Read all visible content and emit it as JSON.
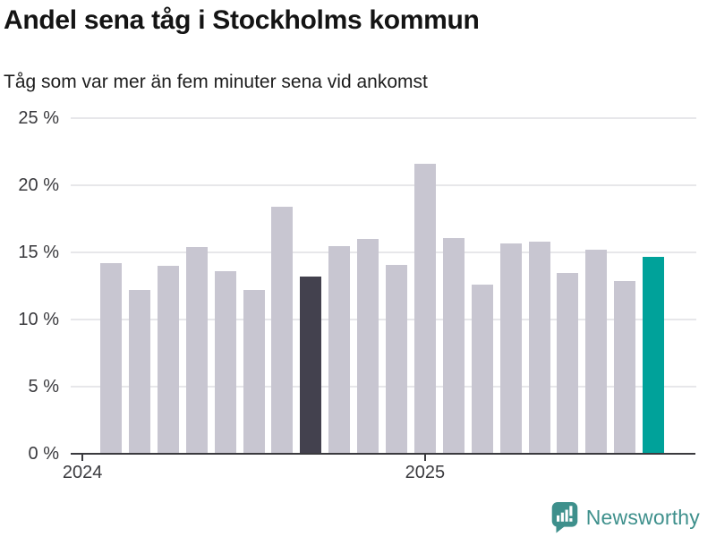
{
  "header": {
    "title": "Andel sena tåg i Stockholms kommun",
    "subtitle": "Tåg som var mer än fem minuter sena vid ankomst"
  },
  "chart_data": {
    "type": "bar",
    "title": "Andel sena tåg i Stockholms kommun",
    "subtitle": "Tåg som var mer än fem minuter sena vid ankomst",
    "unit": "%",
    "categories": [
      "2024-02",
      "2024-03",
      "2024-04",
      "2024-05",
      "2024-06",
      "2024-07",
      "2024-08",
      "2024-09",
      "2024-10",
      "2024-11",
      "2024-12",
      "2025-01",
      "2025-02",
      "2025-03",
      "2025-04",
      "2025-05",
      "2025-06",
      "2025-07",
      "2025-08",
      "2025-09"
    ],
    "values": [
      14.1,
      12.1,
      13.9,
      15.3,
      13.5,
      12.1,
      18.3,
      13.1,
      15.4,
      15.9,
      14.0,
      21.5,
      16.0,
      12.5,
      15.6,
      15.7,
      13.4,
      15.1,
      12.8,
      14.6
    ],
    "bar_default_color": "#c8c6d1",
    "highlights": [
      {
        "index": 7,
        "category": "2024-09",
        "color": "#43414e"
      },
      {
        "index": 19,
        "category": "2025-09",
        "color": "#00a29a"
      }
    ],
    "ylim": [
      0,
      25
    ],
    "ytick_values": [
      0,
      5,
      10,
      15,
      20,
      25
    ],
    "ytick_labels": [
      "0 %",
      "5 %",
      "10 %",
      "15 %",
      "20 %",
      "25 %"
    ],
    "xticks": [
      {
        "label": "2024",
        "category": "2024-01"
      },
      {
        "label": "2025",
        "category": "2025-01"
      }
    ],
    "grid": true,
    "legend_position": "none"
  },
  "footer": {
    "brand": "Newsworthy",
    "logo_icon": "newsworthy-speech-bubble-bar-chart-icon"
  },
  "colors": {
    "background": "#ffffff",
    "bar_default": "#c8c6d1",
    "bar_dark_highlight": "#43414e",
    "bar_teal_highlight": "#00a29a",
    "gridline": "#e7e7ea",
    "axis": "#3a3a3e",
    "brand_teal": "#3e908c"
  }
}
